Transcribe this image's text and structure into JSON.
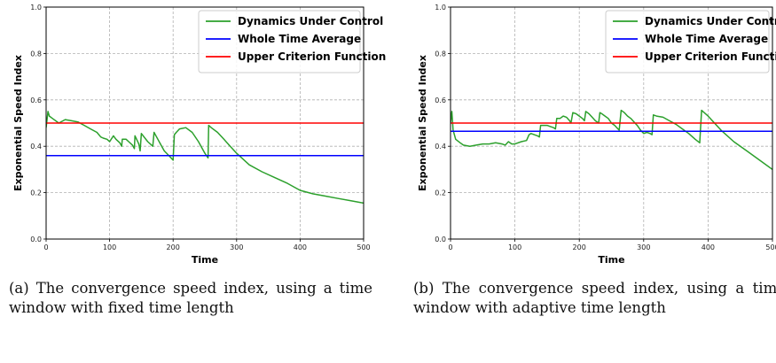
{
  "chart_data": [
    {
      "type": "line",
      "xlabel": "Time",
      "ylabel": "Exponential Speed Index",
      "xlim": [
        0,
        500
      ],
      "ylim": [
        0,
        1.0
      ],
      "xticks": [
        "0",
        "100",
        "200",
        "300",
        "400",
        "500"
      ],
      "yticks": [
        "0.0",
        "0.2",
        "0.4",
        "0.6",
        "0.8",
        "1.0"
      ],
      "grid": true,
      "legend_position": "top-right",
      "series": [
        {
          "name": "Dynamics Under Control",
          "color": "#2ca02c",
          "x": [
            0,
            3,
            5,
            10,
            20,
            30,
            40,
            50,
            60,
            70,
            80,
            86,
            90,
            96,
            100,
            106,
            110,
            116,
            119,
            120,
            126,
            130,
            136,
            139,
            140,
            146,
            148,
            150,
            160,
            168,
            170,
            176,
            180,
            186,
            195,
            200,
            202,
            205,
            210,
            220,
            230,
            240,
            250,
            255,
            256,
            260,
            270,
            280,
            290,
            300,
            320,
            340,
            360,
            380,
            400,
            420,
            440,
            460,
            480,
            500
          ],
          "y": [
            0.48,
            0.55,
            0.53,
            0.52,
            0.5,
            0.515,
            0.51,
            0.505,
            0.49,
            0.475,
            0.46,
            0.44,
            0.435,
            0.43,
            0.42,
            0.445,
            0.43,
            0.415,
            0.4,
            0.43,
            0.43,
            0.42,
            0.405,
            0.39,
            0.445,
            0.41,
            0.38,
            0.455,
            0.42,
            0.4,
            0.46,
            0.43,
            0.41,
            0.38,
            0.355,
            0.34,
            0.45,
            0.46,
            0.475,
            0.48,
            0.46,
            0.42,
            0.37,
            0.35,
            0.49,
            0.48,
            0.46,
            0.43,
            0.4,
            0.37,
            0.32,
            0.29,
            0.265,
            0.24,
            0.21,
            0.195,
            0.185,
            0.175,
            0.165,
            0.155
          ]
        },
        {
          "name": "Whole Time Average",
          "color": "#0000ff",
          "x": [
            0,
            500
          ],
          "y": [
            0.36,
            0.36
          ]
        },
        {
          "name": "Upper Criterion Function",
          "color": "#ff0000",
          "x": [
            0,
            500
          ],
          "y": [
            0.5,
            0.5
          ]
        }
      ]
    },
    {
      "type": "line",
      "xlabel": "Time",
      "ylabel": "Exponential Speed Index",
      "xlim": [
        0,
        500
      ],
      "ylim": [
        0,
        1.0
      ],
      "xticks": [
        "0",
        "100",
        "200",
        "300",
        "400",
        "500"
      ],
      "yticks": [
        "0.0",
        "0.2",
        "0.4",
        "0.6",
        "0.8",
        "1.0"
      ],
      "grid": true,
      "legend_position": "top-right",
      "series": [
        {
          "name": "Dynamics Under Control",
          "color": "#2ca02c",
          "x": [
            0,
            2,
            4,
            8,
            15,
            20,
            30,
            40,
            50,
            60,
            70,
            80,
            85,
            90,
            95,
            100,
            110,
            118,
            122,
            125,
            135,
            138,
            140,
            145,
            150,
            155,
            160,
            163,
            165,
            170,
            175,
            180,
            185,
            187,
            190,
            195,
            200,
            205,
            208,
            210,
            215,
            220,
            225,
            230,
            232,
            235,
            240,
            245,
            250,
            255,
            260,
            262,
            265,
            270,
            275,
            280,
            285,
            290,
            295,
            300,
            305,
            310,
            313,
            315,
            320,
            330,
            340,
            350,
            360,
            370,
            380,
            387,
            390,
            400,
            420,
            440,
            460,
            480,
            500
          ],
          "y": [
            0.5,
            0.55,
            0.47,
            0.43,
            0.415,
            0.405,
            0.4,
            0.405,
            0.41,
            0.41,
            0.415,
            0.41,
            0.405,
            0.42,
            0.41,
            0.41,
            0.42,
            0.425,
            0.45,
            0.455,
            0.445,
            0.44,
            0.49,
            0.49,
            0.49,
            0.485,
            0.48,
            0.475,
            0.52,
            0.52,
            0.53,
            0.525,
            0.51,
            0.5,
            0.545,
            0.54,
            0.53,
            0.52,
            0.51,
            0.55,
            0.54,
            0.525,
            0.51,
            0.5,
            0.545,
            0.54,
            0.53,
            0.52,
            0.5,
            0.49,
            0.475,
            0.47,
            0.555,
            0.545,
            0.53,
            0.52,
            0.505,
            0.49,
            0.47,
            0.455,
            0.46,
            0.455,
            0.45,
            0.535,
            0.53,
            0.525,
            0.51,
            0.495,
            0.475,
            0.455,
            0.43,
            0.415,
            0.555,
            0.53,
            0.47,
            0.42,
            0.38,
            0.34,
            0.3
          ]
        },
        {
          "name": "Whole Time Average",
          "color": "#0000ff",
          "x": [
            0,
            500
          ],
          "y": [
            0.465,
            0.465
          ]
        },
        {
          "name": "Upper Criterion Function",
          "color": "#ff0000",
          "x": [
            0,
            500
          ],
          "y": [
            0.5,
            0.5
          ]
        }
      ]
    }
  ],
  "captions": [
    "(a) The convergence speed index, using a time window with fixed time length",
    "(b) The convergence speed index, using a time window with adaptive time length"
  ]
}
